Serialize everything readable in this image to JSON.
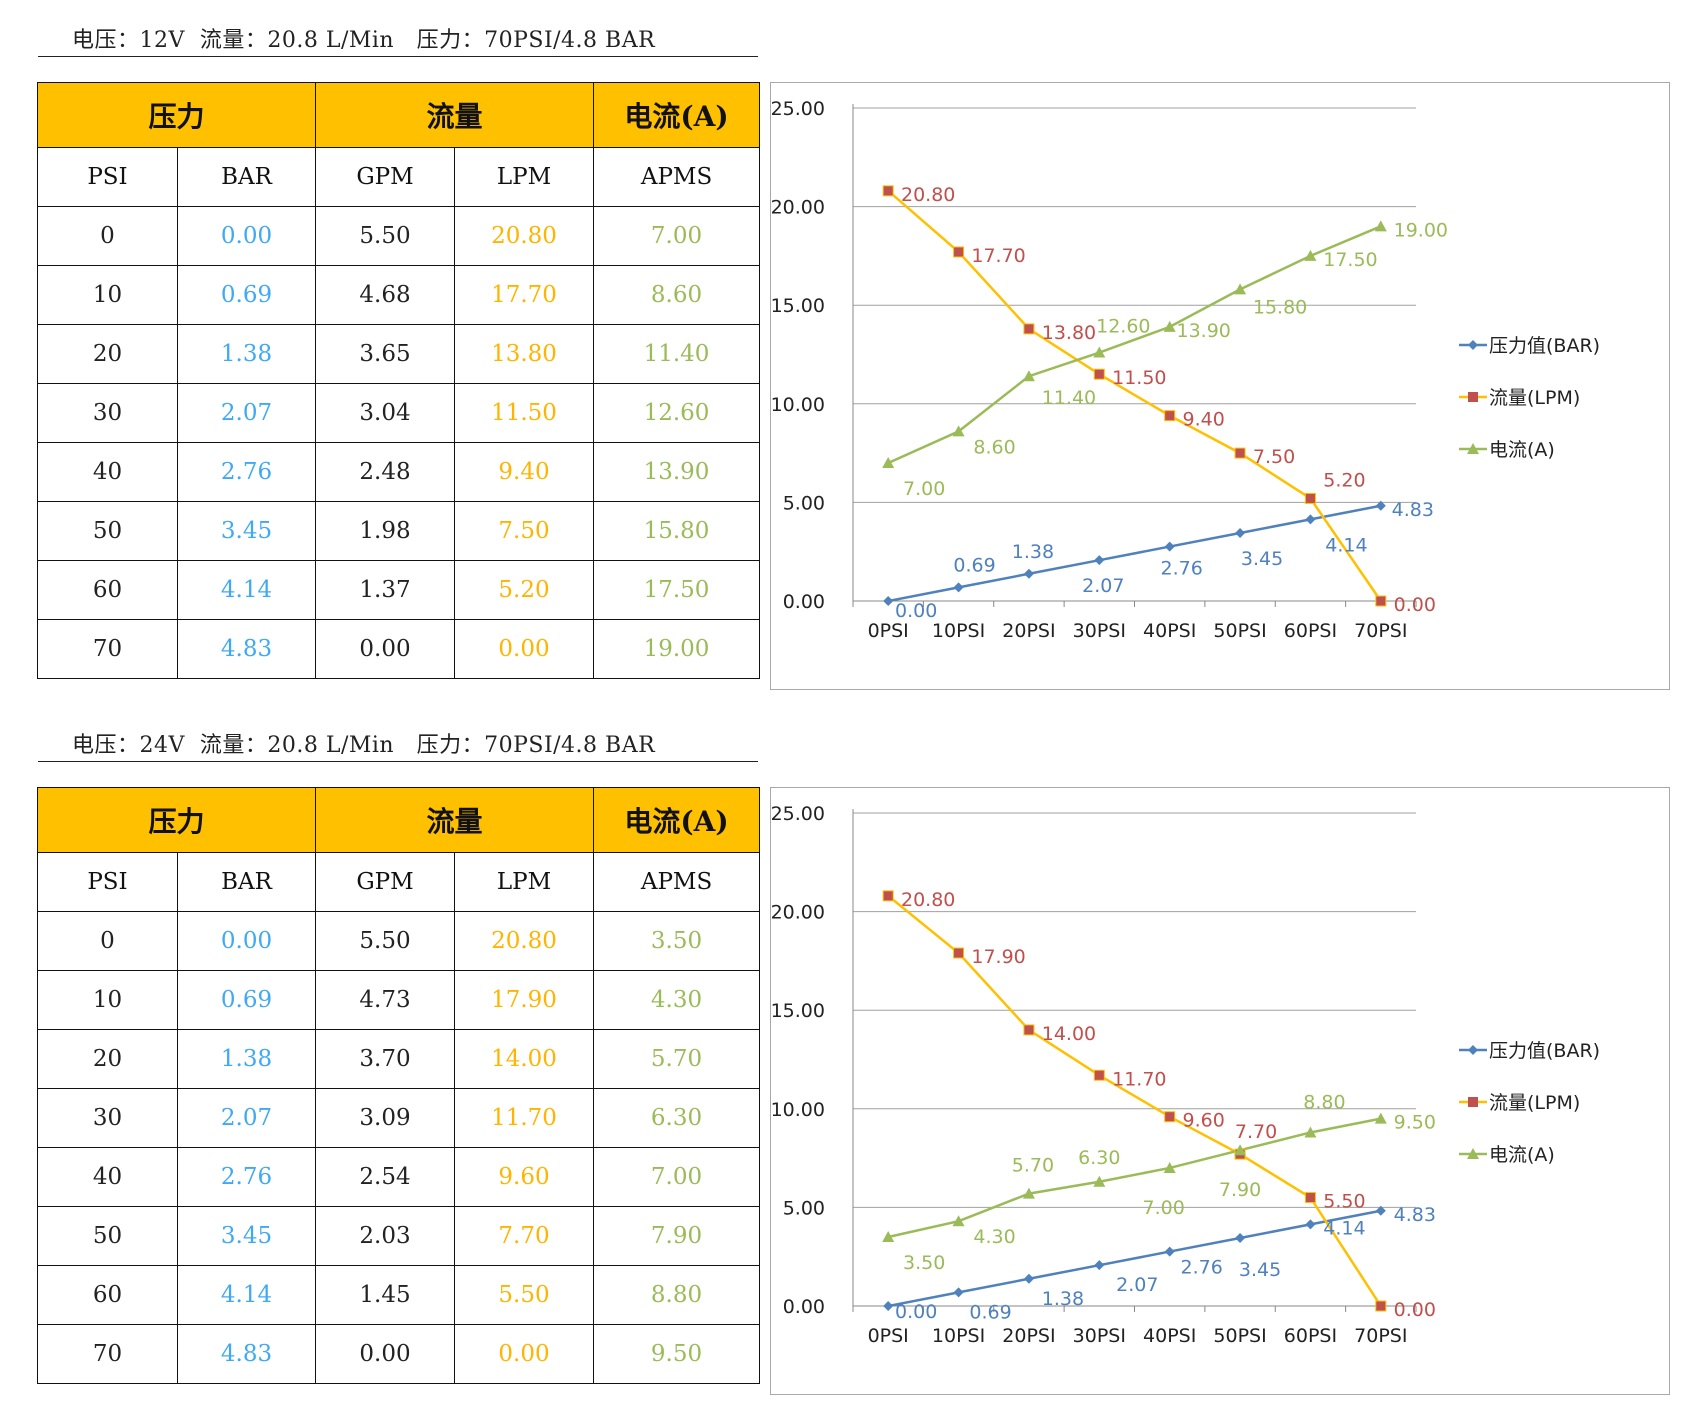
{
  "sections": [
    {
      "spec": "电压：12V  流量：20.8 L/Min   压力：70PSI/4.8 BAR",
      "headers": {
        "g1": "压力",
        "g2": "流量",
        "g3": "电流(A)",
        "c1": "PSI",
        "c2": "BAR",
        "c3": "GPM",
        "c4": "LPM",
        "c5": "APMS"
      },
      "rows": [
        [
          "0",
          "0.00",
          "5.50",
          "20.80",
          "7.00"
        ],
        [
          "10",
          "0.69",
          "4.68",
          "17.70",
          "8.60"
        ],
        [
          "20",
          "1.38",
          "3.65",
          "13.80",
          "11.40"
        ],
        [
          "30",
          "2.07",
          "3.04",
          "11.50",
          "12.60"
        ],
        [
          "40",
          "2.76",
          "2.48",
          "9.40",
          "13.90"
        ],
        [
          "50",
          "3.45",
          "1.98",
          "7.50",
          "15.80"
        ],
        [
          "60",
          "4.14",
          "1.37",
          "5.20",
          "17.50"
        ],
        [
          "70",
          "4.83",
          "0.00",
          "0.00",
          "19.00"
        ]
      ]
    },
    {
      "spec": "电压：24V  流量：20.8 L/Min   压力：70PSI/4.8 BAR",
      "headers": {
        "g1": "压力",
        "g2": "流量",
        "g3": "电流(A)",
        "c1": "PSI",
        "c2": "BAR",
        "c3": "GPM",
        "c4": "LPM",
        "c5": "APMS"
      },
      "rows": [
        [
          "0",
          "0.00",
          "5.50",
          "20.80",
          "3.50"
        ],
        [
          "10",
          "0.69",
          "4.73",
          "17.90",
          "4.30"
        ],
        [
          "20",
          "1.38",
          "3.70",
          "14.00",
          "5.70"
        ],
        [
          "30",
          "2.07",
          "3.09",
          "11.70",
          "6.30"
        ],
        [
          "40",
          "2.76",
          "2.54",
          "9.60",
          "7.00"
        ],
        [
          "50",
          "3.45",
          "2.03",
          "7.70",
          "7.90"
        ],
        [
          "60",
          "4.14",
          "1.45",
          "5.50",
          "8.80"
        ],
        [
          "70",
          "4.83",
          "0.00",
          "0.00",
          "9.50"
        ]
      ]
    }
  ],
  "chart_data": [
    {
      "type": "line",
      "categories": [
        "0PSI",
        "10PSI",
        "20PSI",
        "30PSI",
        "40PSI",
        "50PSI",
        "60PSI",
        "70PSI"
      ],
      "ylim": [
        0,
        25
      ],
      "yticks": [
        "0.00",
        "5.00",
        "10.00",
        "15.00",
        "20.00",
        "25.00"
      ],
      "grid": true,
      "legend_position": "right",
      "series": [
        {
          "name": "压力值(BAR)",
          "color": "#4f81bd",
          "marker": "diamond",
          "label_color": "#4f81bd",
          "values": [
            0.0,
            0.69,
            1.38,
            2.07,
            2.76,
            3.45,
            4.14,
            4.83
          ],
          "labels": [
            "0.00",
            "0.69",
            "1.38",
            "2.07",
            "2.76",
            "3.45",
            "4.14",
            "4.83"
          ]
        },
        {
          "name": "流量(LPM)",
          "color": "#ffc000",
          "marker": "square",
          "marker_color": "#c0504d",
          "label_color": "#c0504d",
          "values": [
            20.8,
            17.7,
            13.8,
            11.5,
            9.4,
            7.5,
            5.2,
            0.0
          ],
          "labels": [
            "20.80",
            "17.70",
            "13.80",
            "11.50",
            "9.40",
            "7.50",
            "5.20",
            "0.00"
          ]
        },
        {
          "name": "电流(A)",
          "color": "#9bbb59",
          "marker": "triangle",
          "label_color": "#9bbb59",
          "values": [
            7.0,
            8.6,
            11.4,
            12.6,
            13.9,
            15.8,
            17.5,
            19.0
          ],
          "labels": [
            "7.00",
            "8.60",
            "11.40",
            "12.60",
            "13.90",
            "15.80",
            "17.50",
            "19.00"
          ]
        }
      ]
    },
    {
      "type": "line",
      "categories": [
        "0PSI",
        "10PSI",
        "20PSI",
        "30PSI",
        "40PSI",
        "50PSI",
        "60PSI",
        "70PSI"
      ],
      "ylim": [
        0,
        25
      ],
      "yticks": [
        "0.00",
        "5.00",
        "10.00",
        "15.00",
        "20.00",
        "25.00"
      ],
      "grid": true,
      "legend_position": "right",
      "series": [
        {
          "name": "压力值(BAR)",
          "color": "#4f81bd",
          "marker": "diamond",
          "label_color": "#4f81bd",
          "values": [
            0.0,
            0.69,
            1.38,
            2.07,
            2.76,
            3.45,
            4.14,
            4.83
          ],
          "labels": [
            "0.00",
            "0.69",
            "1.38",
            "2.07",
            "2.76",
            "3.45",
            "4.14",
            "4.83"
          ]
        },
        {
          "name": "流量(LPM)",
          "color": "#ffc000",
          "marker": "square",
          "marker_color": "#c0504d",
          "label_color": "#c0504d",
          "values": [
            20.8,
            17.9,
            14.0,
            11.7,
            9.6,
            7.7,
            5.5,
            0.0
          ],
          "labels": [
            "20.80",
            "17.90",
            "14.00",
            "11.70",
            "9.60",
            "7.70",
            "5.50",
            "0.00"
          ]
        },
        {
          "name": "电流(A)",
          "color": "#9bbb59",
          "marker": "triangle",
          "label_color": "#9bbb59",
          "values": [
            3.5,
            4.3,
            5.7,
            6.3,
            7.0,
            7.9,
            8.8,
            9.5
          ],
          "labels": [
            "3.50",
            "4.30",
            "5.70",
            "6.30",
            "7.00",
            "7.90",
            "8.80",
            "9.50"
          ]
        }
      ]
    }
  ]
}
